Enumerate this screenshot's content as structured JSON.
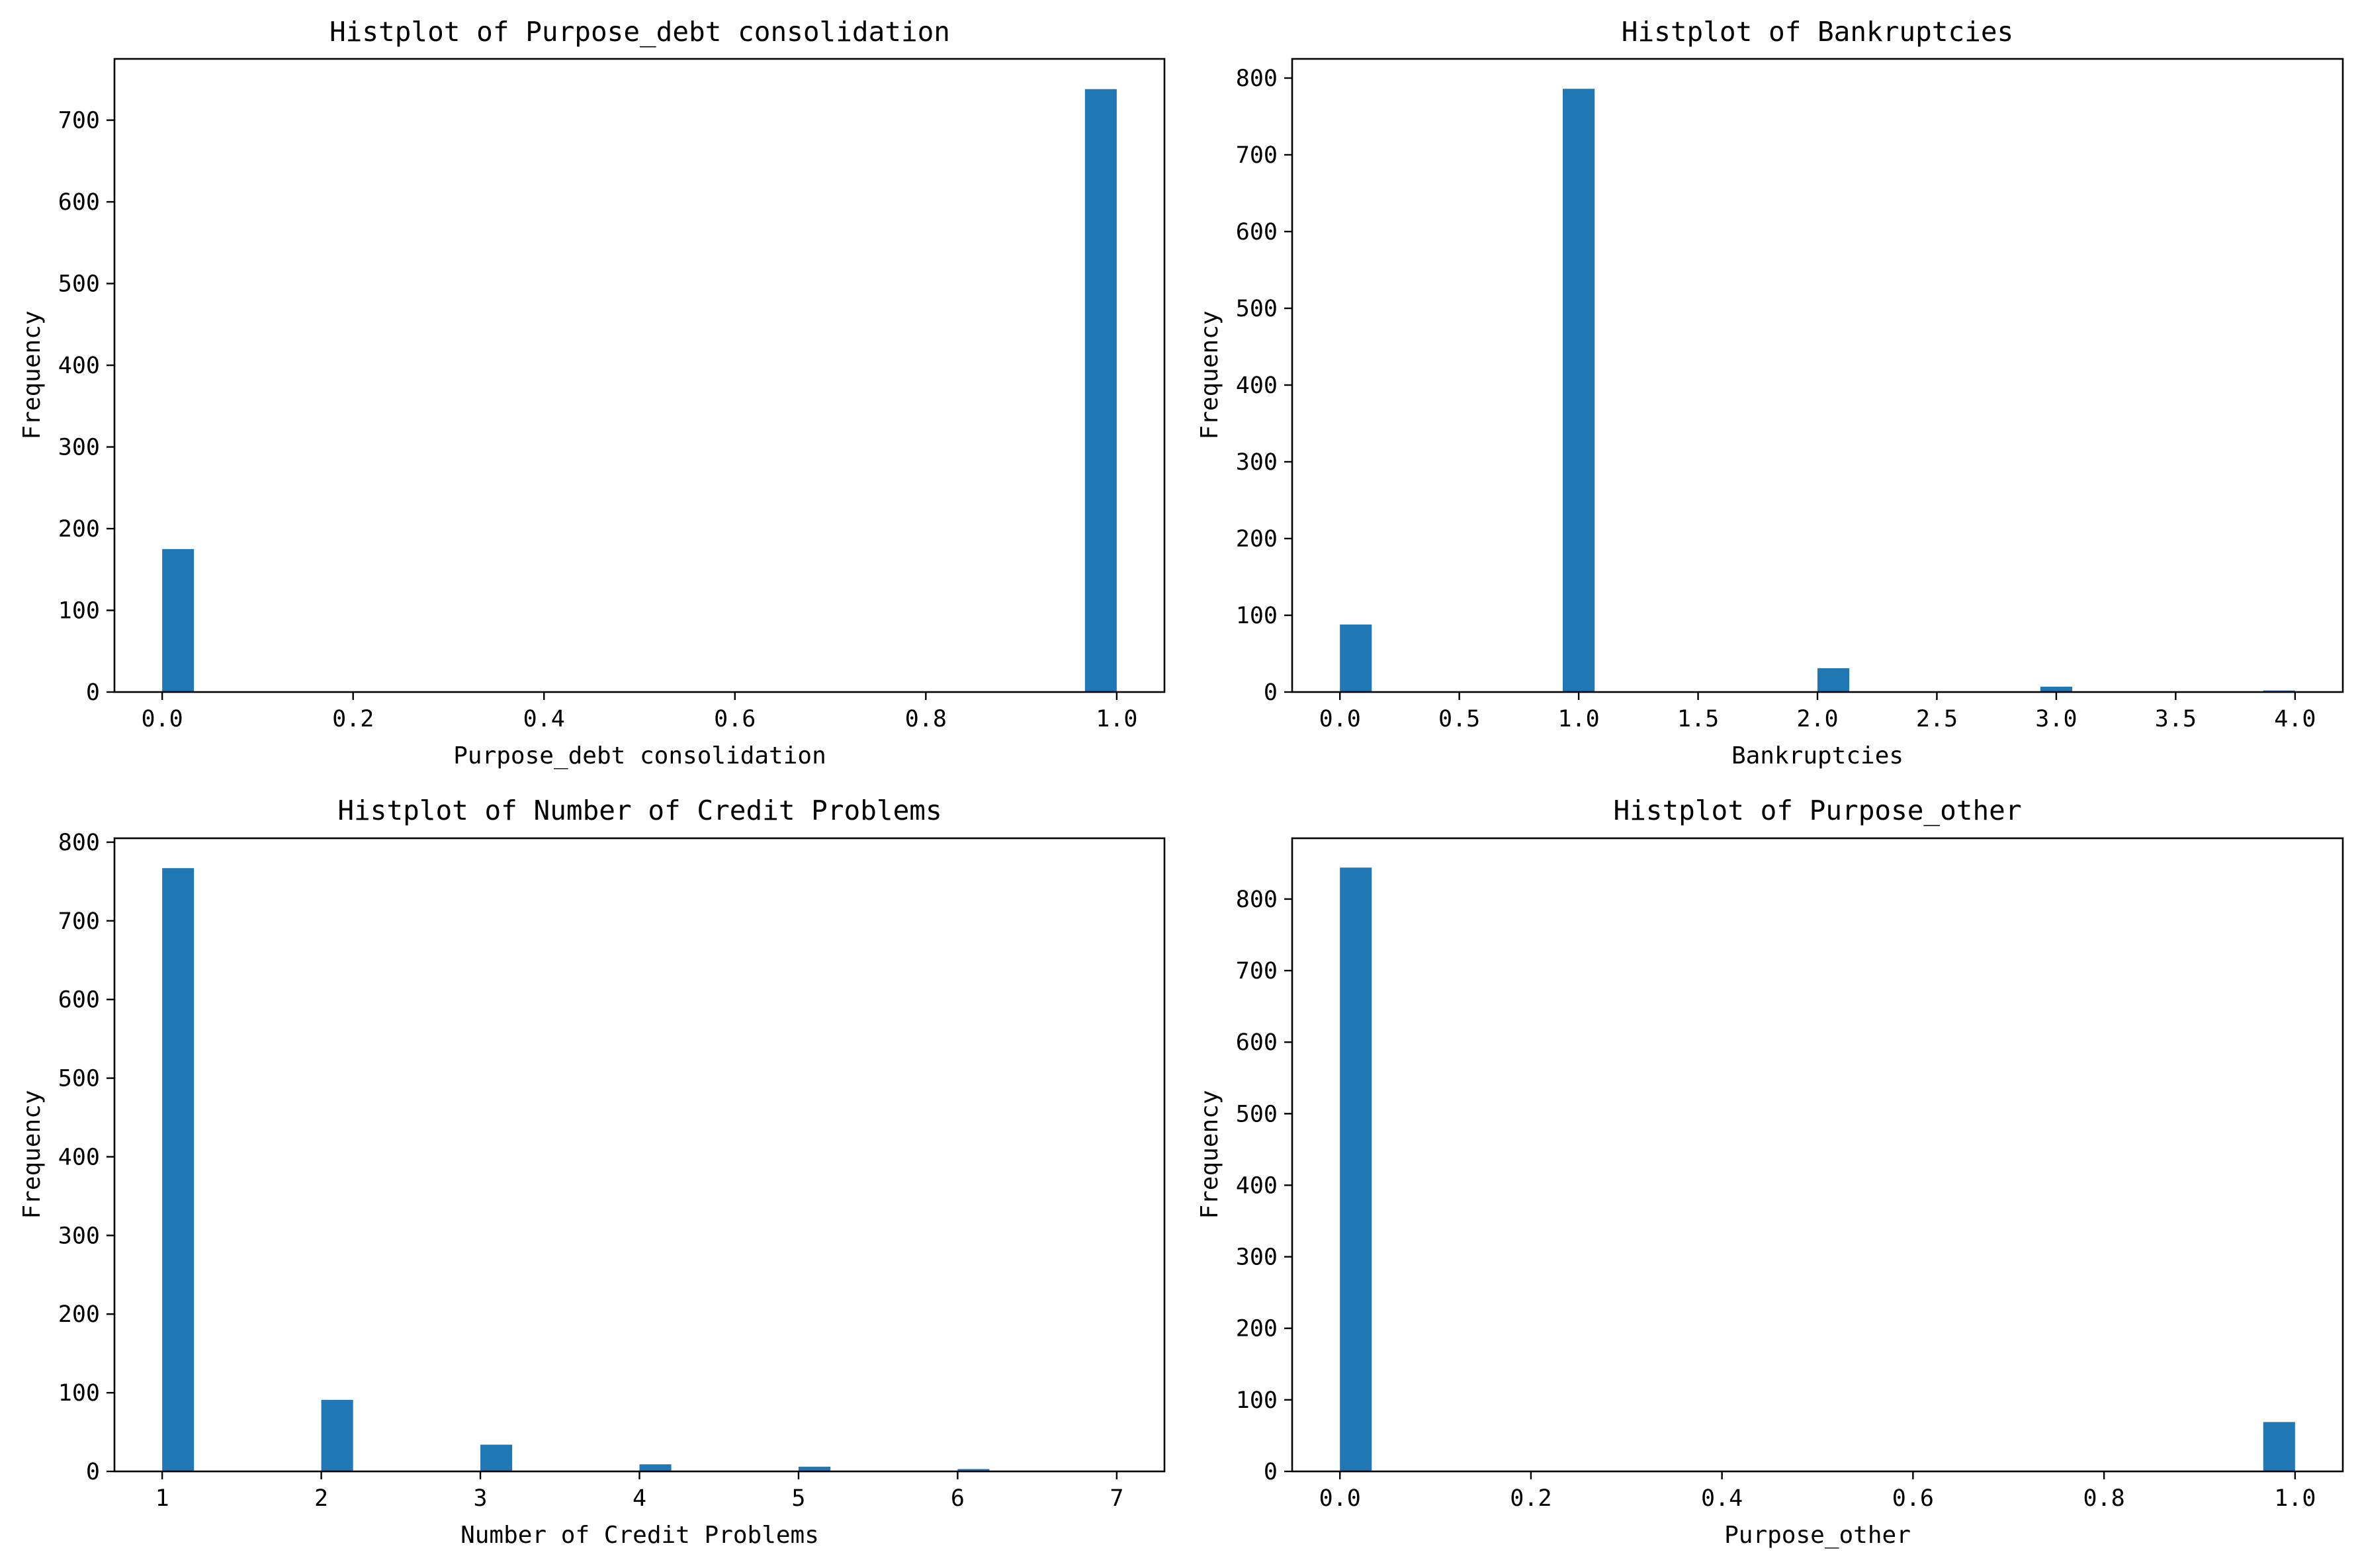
{
  "figure": {
    "background": "#ffffff",
    "bar_color": "#1f77b4",
    "axis_color": "#000000"
  },
  "chart_data": [
    {
      "type": "bar",
      "title": "Histplot of Purpose_debt consolidation",
      "xlabel": "Purpose_debt consolidation",
      "ylabel": "Frequency",
      "xlim": [
        -0.05,
        1.05
      ],
      "ylim": [
        0,
        775
      ],
      "xticks": [
        0.0,
        0.2,
        0.4,
        0.6,
        0.8,
        1.0
      ],
      "xtick_labels": [
        "0.0",
        "0.2",
        "0.4",
        "0.6",
        "0.8",
        "1.0"
      ],
      "yticks": [
        0,
        100,
        200,
        300,
        400,
        500,
        600,
        700
      ],
      "ytick_labels": [
        "0",
        "100",
        "200",
        "300",
        "400",
        "500",
        "600",
        "700"
      ],
      "bin_width": 0.0333,
      "bars": [
        {
          "x_start": 0.0,
          "x_end": 0.0333,
          "count": 175
        },
        {
          "x_start": 0.9667,
          "x_end": 1.0,
          "count": 738
        }
      ]
    },
    {
      "type": "bar",
      "title": "Histplot of Bankruptcies",
      "xlabel": "Bankruptcies",
      "ylabel": "Frequency",
      "xlim": [
        -0.2,
        4.2
      ],
      "ylim": [
        0,
        825
      ],
      "xticks": [
        0.0,
        0.5,
        1.0,
        1.5,
        2.0,
        2.5,
        3.0,
        3.5,
        4.0
      ],
      "xtick_labels": [
        "0.0",
        "0.5",
        "1.0",
        "1.5",
        "2.0",
        "2.5",
        "3.0",
        "3.5",
        "4.0"
      ],
      "yticks": [
        0,
        100,
        200,
        300,
        400,
        500,
        600,
        700,
        800
      ],
      "ytick_labels": [
        "0",
        "100",
        "200",
        "300",
        "400",
        "500",
        "600",
        "700",
        "800"
      ],
      "bin_width": 0.1333,
      "bars": [
        {
          "x_start": 0.0,
          "x_end": 0.1333,
          "count": 88
        },
        {
          "x_start": 0.9333,
          "x_end": 1.0667,
          "count": 786
        },
        {
          "x_start": 2.0,
          "x_end": 2.1333,
          "count": 31
        },
        {
          "x_start": 2.9333,
          "x_end": 3.0667,
          "count": 7
        },
        {
          "x_start": 3.8667,
          "x_end": 4.0,
          "count": 2
        }
      ]
    },
    {
      "type": "bar",
      "title": "Histplot of Number of Credit Problems",
      "xlabel": "Number of Credit Problems",
      "ylabel": "Frequency",
      "xlim": [
        0.7,
        7.3
      ],
      "ylim": [
        0,
        805
      ],
      "xticks": [
        1,
        2,
        3,
        4,
        5,
        6,
        7
      ],
      "xtick_labels": [
        "1",
        "2",
        "3",
        "4",
        "5",
        "6",
        "7"
      ],
      "yticks": [
        0,
        100,
        200,
        300,
        400,
        500,
        600,
        700,
        800
      ],
      "ytick_labels": [
        "0",
        "100",
        "200",
        "300",
        "400",
        "500",
        "600",
        "700",
        "800"
      ],
      "bin_width": 0.2,
      "bars": [
        {
          "x_start": 1.0,
          "x_end": 1.2,
          "count": 767
        },
        {
          "x_start": 2.0,
          "x_end": 2.2,
          "count": 91
        },
        {
          "x_start": 3.0,
          "x_end": 3.2,
          "count": 34
        },
        {
          "x_start": 4.0,
          "x_end": 4.2,
          "count": 9
        },
        {
          "x_start": 5.0,
          "x_end": 5.2,
          "count": 6
        },
        {
          "x_start": 6.0,
          "x_end": 6.2,
          "count": 3
        }
      ]
    },
    {
      "type": "bar",
      "title": "Histplot of Purpose_other",
      "xlabel": "Purpose_other",
      "ylabel": "Frequency",
      "xlim": [
        -0.05,
        1.05
      ],
      "ylim": [
        0,
        885
      ],
      "xticks": [
        0.0,
        0.2,
        0.4,
        0.6,
        0.8,
        1.0
      ],
      "xtick_labels": [
        "0.0",
        "0.2",
        "0.4",
        "0.6",
        "0.8",
        "1.0"
      ],
      "yticks": [
        0,
        100,
        200,
        300,
        400,
        500,
        600,
        700,
        800
      ],
      "ytick_labels": [
        "0",
        "100",
        "200",
        "300",
        "400",
        "500",
        "600",
        "700",
        "800"
      ],
      "bin_width": 0.0333,
      "bars": [
        {
          "x_start": 0.0,
          "x_end": 0.0333,
          "count": 844
        },
        {
          "x_start": 0.9667,
          "x_end": 1.0,
          "count": 69
        }
      ]
    }
  ]
}
